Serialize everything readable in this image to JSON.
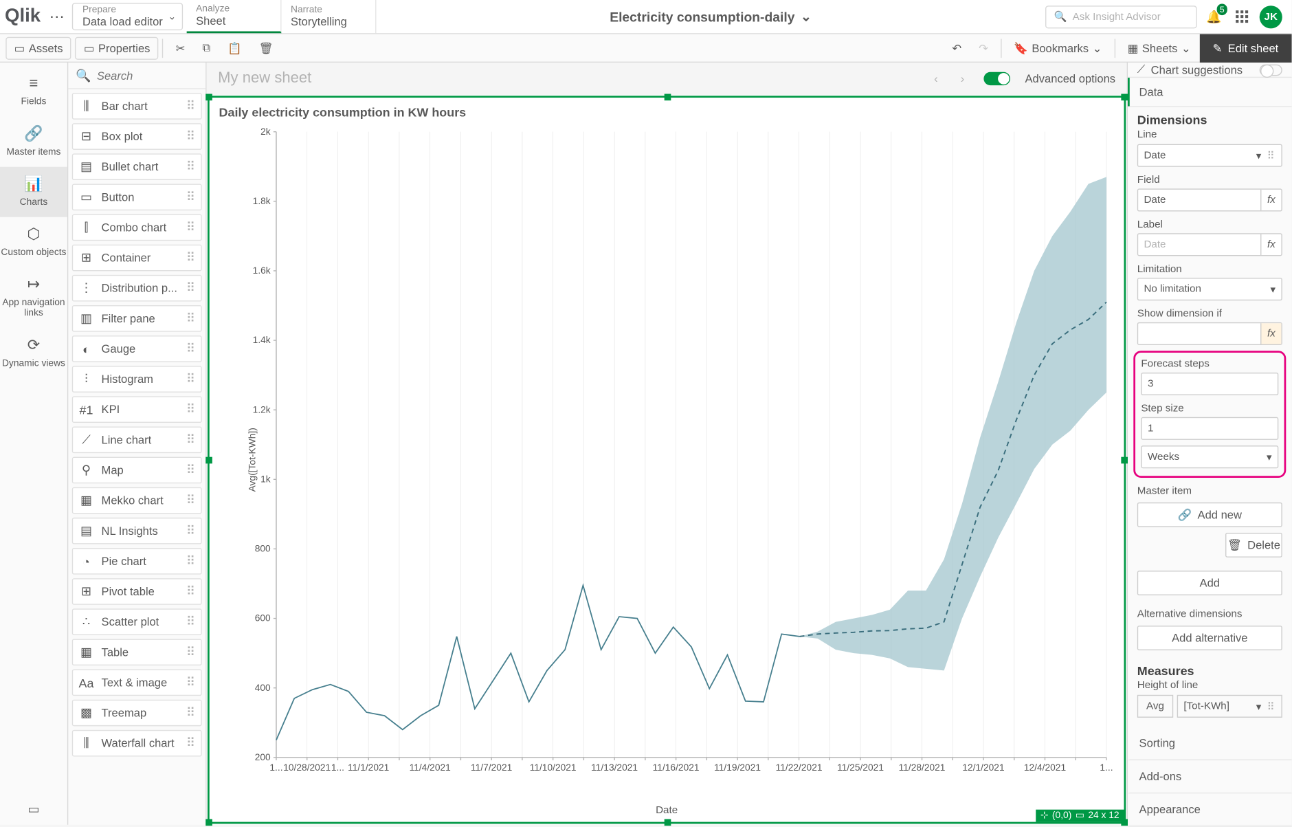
{
  "top": {
    "logo": "Qlik",
    "prepare": {
      "small": "Prepare",
      "main": "Data load editor"
    },
    "analyze": {
      "small": "Analyze",
      "main": "Sheet"
    },
    "narrate": {
      "small": "Narrate",
      "main": "Storytelling"
    },
    "app_title": "Electricity consumption-daily",
    "insight_placeholder": "Ask Insight Advisor",
    "notif_count": "5",
    "avatar": "JK"
  },
  "toolbar": {
    "assets": "Assets",
    "properties": "Properties",
    "bookmarks": "Bookmarks",
    "sheets": "Sheets",
    "edit": "Edit sheet"
  },
  "leftstrip": {
    "items": [
      {
        "label": "Fields",
        "icon": "≡"
      },
      {
        "label": "Master items",
        "icon": "🔗"
      },
      {
        "label": "Charts",
        "icon": "📊"
      },
      {
        "label": "Custom objects",
        "icon": "⬡"
      },
      {
        "label": "App navigation links",
        "icon": "↦"
      },
      {
        "label": "Dynamic views",
        "icon": "⟳"
      }
    ]
  },
  "chartlist": {
    "search": "Search",
    "items": [
      {
        "label": "Bar chart",
        "icon": "⫼"
      },
      {
        "label": "Box plot",
        "icon": "⊟"
      },
      {
        "label": "Bullet chart",
        "icon": "▤"
      },
      {
        "label": "Button",
        "icon": "▭"
      },
      {
        "label": "Combo chart",
        "icon": "⫿"
      },
      {
        "label": "Container",
        "icon": "⊞"
      },
      {
        "label": "Distribution p...",
        "icon": "⋮"
      },
      {
        "label": "Filter pane",
        "icon": "▥"
      },
      {
        "label": "Gauge",
        "icon": "◐"
      },
      {
        "label": "Histogram",
        "icon": "⫶"
      },
      {
        "label": "KPI",
        "icon": "#1"
      },
      {
        "label": "Line chart",
        "icon": "⟋"
      },
      {
        "label": "Map",
        "icon": "⚲"
      },
      {
        "label": "Mekko chart",
        "icon": "▦"
      },
      {
        "label": "NL Insights",
        "icon": "▤"
      },
      {
        "label": "Pie chart",
        "icon": "◔"
      },
      {
        "label": "Pivot table",
        "icon": "⊞"
      },
      {
        "label": "Scatter plot",
        "icon": "∴"
      },
      {
        "label": "Table",
        "icon": "▦"
      },
      {
        "label": "Text & image",
        "icon": "Aa"
      },
      {
        "label": "Treemap",
        "icon": "▩"
      },
      {
        "label": "Waterfall chart",
        "icon": "⫼"
      }
    ]
  },
  "canvas": {
    "sheet_title": "My new sheet",
    "advanced": "Advanced options",
    "chart_title": "Daily electricity consumption in KW hours",
    "coord": "(0,0)",
    "size": "24 x 12",
    "x_axis_label": "Date",
    "y_axis_label": "Avg([Tot-KWh])"
  },
  "chart": {
    "type": "line-with-forecast",
    "y": {
      "min": 200,
      "max": 2000,
      "ticks": [
        200,
        400,
        600,
        800,
        1000,
        1200,
        1400,
        1600,
        1800,
        2000
      ],
      "tick_labels": [
        "200",
        "400",
        "600",
        "800",
        "1k",
        "1.2k",
        "1.4k",
        "1.6k",
        "1.8k",
        "2k"
      ]
    },
    "x_labels": [
      "1...",
      "10/28/2021",
      "1...",
      "11/1/2021",
      "",
      "11/4/2021",
      "",
      "11/7/2021",
      "",
      "11/10/2021",
      "",
      "11/13/2021",
      "",
      "11/16/2021",
      "",
      "11/19/2021",
      "",
      "11/22/2021",
      "",
      "11/25/2021",
      "",
      "11/28/2021",
      "",
      "12/1/2021",
      "",
      "12/4/2021",
      "",
      "1..."
    ],
    "actual": [
      250,
      370,
      395,
      410,
      390,
      330,
      320,
      280,
      320,
      350,
      548,
      340,
      420,
      500,
      360,
      450,
      510,
      695,
      510,
      605,
      600,
      500,
      575,
      518,
      398,
      495,
      362,
      360,
      555,
      548
    ],
    "forecast_line": [
      548,
      555,
      558,
      560,
      564,
      565,
      570,
      572,
      590,
      755,
      920,
      1025,
      1170,
      1300,
      1390,
      1430,
      1460,
      1510
    ],
    "forecast_upper": [
      548,
      562,
      590,
      600,
      610,
      625,
      680,
      680,
      770,
      930,
      1120,
      1280,
      1450,
      1600,
      1700,
      1770,
      1850,
      1870
    ],
    "forecast_lower": [
      548,
      542,
      510,
      500,
      495,
      485,
      460,
      455,
      450,
      600,
      720,
      832,
      930,
      1030,
      1100,
      1140,
      1200,
      1250
    ],
    "colors": {
      "line": "#467f8e",
      "forecast_fill": "#a3c6cd",
      "forecast_line": "#3a6e7d",
      "grid": "#e6e6e6",
      "axis": "#b3b3b3",
      "bg": "#ffffff"
    },
    "line_width": 1.3
  },
  "rightpanel": {
    "suggestions": "Chart suggestions",
    "data": "Data",
    "dimensions": "Dimensions",
    "dim_sub": "Line",
    "dim_value": "Date",
    "field_label": "Field",
    "field_value": "Date",
    "label_label": "Label",
    "label_placeholder": "Date",
    "limitation_label": "Limitation",
    "limitation_value": "No limitation",
    "showif_label": "Show dimension if",
    "forecast_steps_label": "Forecast steps",
    "forecast_steps": "3",
    "step_size_label": "Step size",
    "step_size": "1",
    "step_unit": "Weeks",
    "master_label": "Master item",
    "add_new": "Add new",
    "delete": "Delete",
    "add": "Add",
    "alt_dims": "Alternative dimensions",
    "add_alt": "Add alternative",
    "measures": "Measures",
    "measures_sub": "Height of line",
    "measure_agg": "Avg",
    "measure_field": "[Tot-KWh]",
    "sorting": "Sorting",
    "addons": "Add-ons",
    "appearance": "Appearance"
  }
}
